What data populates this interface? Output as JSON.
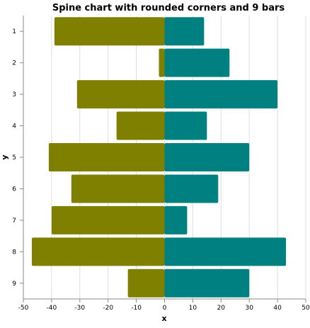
{
  "chart_data": {
    "type": "bar",
    "orientation": "horizontal",
    "title": "Spine chart with rounded corners and 9 bars",
    "xlabel": "x",
    "ylabel": "y",
    "xlim": [
      -50,
      50
    ],
    "xticks": [
      -50,
      -40,
      -30,
      -20,
      -10,
      0,
      10,
      20,
      30,
      40,
      50
    ],
    "categories": [
      "1",
      "2",
      "3",
      "4",
      "5",
      "6",
      "7",
      "8",
      "9"
    ],
    "grid": true,
    "legend": "none",
    "series": [
      {
        "color": "#808000",
        "values": [
          -39,
          -2,
          -31,
          -17,
          -41,
          -33,
          -40,
          -47,
          -13
        ]
      },
      {
        "color": "#008080",
        "values": [
          14,
          23,
          40,
          15,
          30,
          19,
          8,
          43,
          30
        ]
      }
    ]
  }
}
